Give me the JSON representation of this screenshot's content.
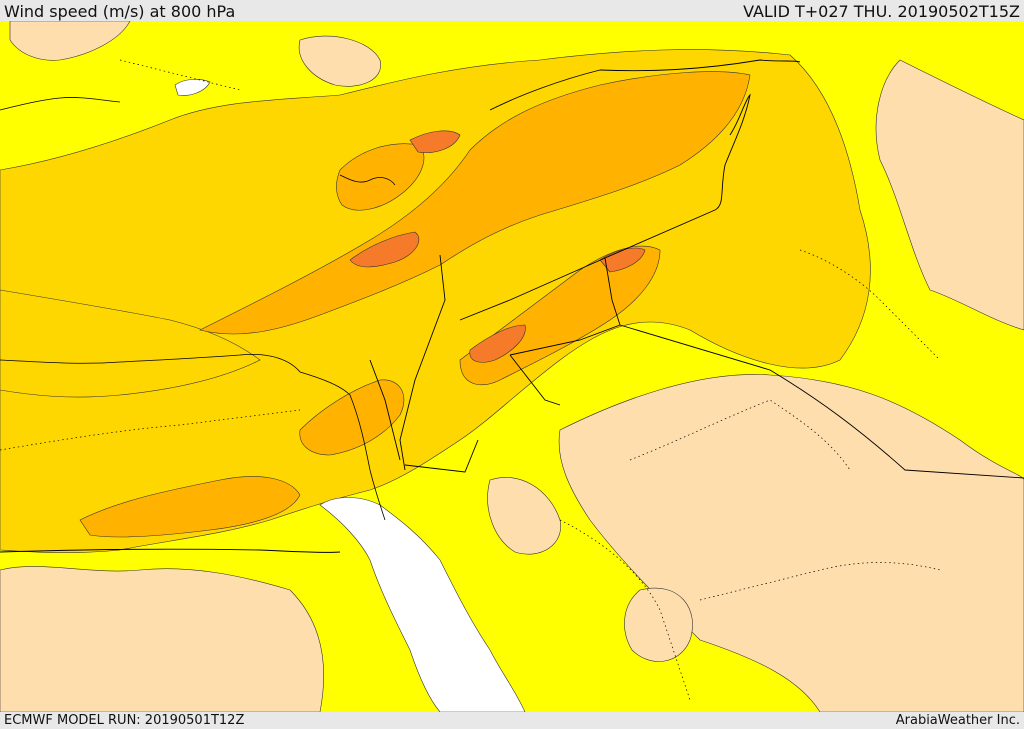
{
  "header": {
    "title": "Wind speed (m/s) at 800 hPa",
    "valid": "VALID T+027 THU. 20190502T15Z"
  },
  "footer": {
    "model_run": "ECMWF MODEL RUN: 20190501T12Z",
    "credit": "ArabiaWeather Inc."
  },
  "colors": {
    "speed_lowest": "#ffdead",
    "speed_low": "#ffff00",
    "speed_medium": "#ffd700",
    "speed_high": "#ffb300",
    "speed_higher": "#ff9a1a",
    "speed_highest": "#f57a2a",
    "missing": "#ffffff",
    "contour_line": "#333333",
    "border_line": "#000000"
  }
}
